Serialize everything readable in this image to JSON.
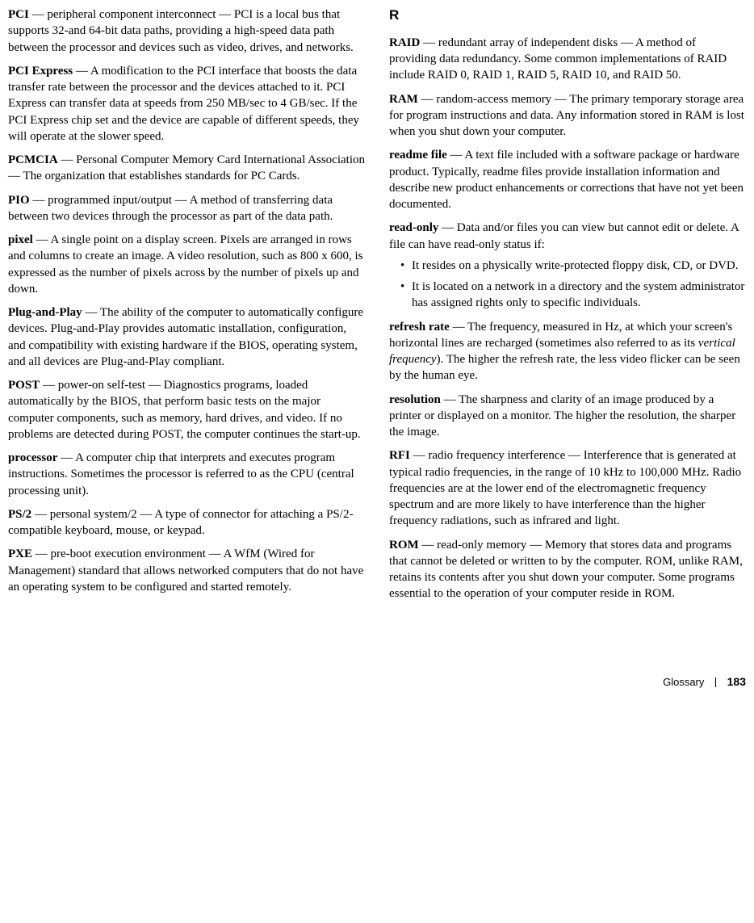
{
  "left": {
    "entries": [
      {
        "term": "PCI",
        "def": " — peripheral component interconnect — PCI is a local bus that supports 32-and 64-bit data paths, providing a high-speed data path between the processor and devices such as video, drives, and networks."
      },
      {
        "term": "PCI Express",
        "def": " — A modification to the PCI interface that boosts the data transfer rate between the processor and the devices attached to it. PCI Express can transfer data at speeds from 250 MB/sec to 4 GB/sec. If the PCI Express chip set and the device are capable of different speeds, they will operate at the slower speed."
      },
      {
        "term": "PCMCIA",
        "def": " — Personal Computer Memory Card International Association — The organization that establishes standards for PC Cards."
      },
      {
        "term": "PIO",
        "def": " — programmed input/output — A method of transferring data between two devices through the processor as part of the data path."
      },
      {
        "term": "pixel",
        "def": " — A single point on a display screen. Pixels are arranged in rows and columns to create an image. A video resolution, such as 800 x 600, is expressed as the number of pixels across by the number of pixels up and down."
      },
      {
        "term": "Plug-and-Play",
        "def": " — The ability of the computer to automatically configure devices. Plug-and-Play provides automatic installation, configuration, and compatibility with existing hardware if the BIOS, operating system, and all devices are Plug-and-Play compliant."
      },
      {
        "term": "POST",
        "def": " — power-on self-test — Diagnostics programs, loaded automatically by the BIOS, that perform basic tests on the major computer components, such as memory, hard drives, and video. If no problems are detected during POST, the computer continues the start-up."
      },
      {
        "term": "processor",
        "def": " — A computer chip that interprets and executes program instructions. Sometimes the processor is referred to as the CPU (central processing unit)."
      },
      {
        "term": "PS/2",
        "def": " — personal system/2 — A type of connector for attaching a PS/2-compatible keyboard, mouse, or keypad."
      },
      {
        "term": "PXE",
        "def": " — pre-boot execution environment — A WfM (Wired for Management) standard that allows networked computers that do not have an operating system to be configured and started remotely."
      }
    ]
  },
  "right": {
    "section_head": "R",
    "entries": [
      {
        "term": "RAID",
        "def": " — redundant array of independent disks — A method of providing data redundancy. Some common implementations of RAID include RAID 0, RAID 1, RAID 5, RAID 10, and RAID 50."
      },
      {
        "term": "RAM",
        "def": " — random-access memory — The primary temporary storage area for program instructions and data. Any information stored in RAM is lost when you shut down your computer."
      },
      {
        "term": "readme file",
        "def": " — A text file included with a software package or hardware product. Typically, readme files provide installation information and describe new product enhancements or corrections that have not yet been documented."
      },
      {
        "term": "read-only",
        "def": " — Data and/or files you can view but cannot edit or delete. A file can have read-only status if:",
        "bullets": [
          "It resides on a physically write-protected floppy disk, CD, or DVD.",
          "It is located on a network in a directory and the system administrator has assigned rights only to specific individuals."
        ]
      },
      {
        "term": "refresh rate",
        "def_pre": " — The frequency, measured in Hz, at which your screen's horizontal lines are recharged (sometimes also referred to as its ",
        "def_em": "vertical frequency",
        "def_post": "). The higher the refresh rate, the less video flicker can be seen by the human eye."
      },
      {
        "term": "resolution",
        "def": " — The sharpness and clarity of an image produced by a printer or displayed on a monitor. The higher the resolution, the sharper the image."
      },
      {
        "term": "RFI",
        "def": " — radio frequency interference — Interference that is generated at typical radio frequencies, in the range of 10 kHz to 100,000 MHz. Radio frequencies are at the lower end of the electromagnetic frequency spectrum and are more likely to have interference than the higher frequency radiations, such as infrared and light."
      },
      {
        "term": "ROM",
        "def": " — read-only memory — Memory that stores data and programs that cannot be deleted or written to by the computer. ROM, unlike RAM, retains its contents after you shut down your computer. Some programs essential to the operation of your computer reside in ROM."
      }
    ]
  },
  "footer": {
    "label": "Glossary",
    "page": "183"
  }
}
